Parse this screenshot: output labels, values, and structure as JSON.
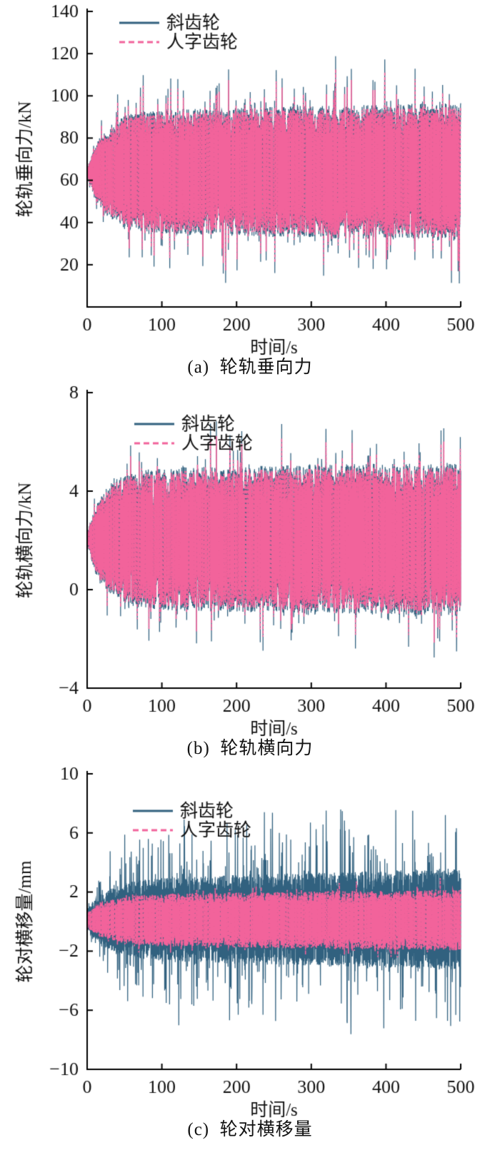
{
  "page": {
    "background": "#ffffff"
  },
  "colors": {
    "helical_blue": "#31617f",
    "herringbone_pink": "#f2639b",
    "axis_black": "#000000",
    "text_black": "#111111"
  },
  "chart_data": [
    {
      "type": "line",
      "caption": "(a)  轮轨垂向力",
      "xlabel": "时间/s",
      "ylabel": "轮轨垂向力/kN",
      "xlim": [
        0,
        500
      ],
      "xticks": [
        0,
        100,
        200,
        300,
        400,
        500
      ],
      "ylim": [
        0,
        140
      ],
      "yticks": [
        20,
        40,
        60,
        80,
        100,
        120,
        140
      ],
      "grid": false,
      "legend_position": "upper-left",
      "description": "Both series start near 64 kN at t=0, fan out to a dense band of roughly 35-97 kN by t≈70 s, with spikes up to ≈123 kN and down to ≈13 kN; pink herringbone nearly overlays blue helical with slightly smaller amplitude.",
      "series": [
        {
          "name": "斜齿轮",
          "color": "#31617f",
          "style": "solid",
          "baseline": 64,
          "amp_start": 1.5,
          "amp_full": 29,
          "rise_tau": 22,
          "growth": 0.13,
          "spike_prob": 0.1,
          "spike_max": 1.82,
          "seed": 11
        },
        {
          "name": "人字齿轮",
          "color": "#f2639b",
          "style": "dashed",
          "baseline": 64,
          "amp_start": 1.4,
          "amp_full": 27.5,
          "rise_tau": 22,
          "growth": 0.13,
          "spike_prob": 0.1,
          "spike_max": 1.7,
          "seed": 11
        }
      ]
    },
    {
      "type": "line",
      "caption": "(b)  轮轨横向力",
      "xlabel": "时间/s",
      "ylabel": "轮轨横向力/kN",
      "xlim": [
        0,
        500
      ],
      "xticks": [
        0,
        100,
        200,
        300,
        400,
        500
      ],
      "ylim": [
        -4,
        8
      ],
      "yticks": [
        -4,
        0,
        4,
        8
      ],
      "grid": false,
      "legend_position": "upper-left",
      "description": "Both series start near 2 kN, fan out to a dense band of roughly -1 to 5 kN, spikes to ≈7 kN and one dip to ≈-3.7 kN near t=285 s; pink nearly overlays blue.",
      "series": [
        {
          "name": "斜齿轮",
          "color": "#31617f",
          "style": "solid",
          "baseline": 2.05,
          "amp_start": 0.25,
          "amp_full": 2.85,
          "rise_tau": 22,
          "growth": 0.1,
          "spike_prob": 0.09,
          "spike_max": 1.65,
          "seed": 22
        },
        {
          "name": "人字齿轮",
          "color": "#f2639b",
          "style": "dashed",
          "baseline": 2.05,
          "amp_start": 0.22,
          "amp_full": 2.7,
          "rise_tau": 22,
          "growth": 0.1,
          "spike_prob": 0.09,
          "spike_max": 1.52,
          "seed": 22
        }
      ]
    },
    {
      "type": "line",
      "caption": "(c)  轮对横移量",
      "xlabel": "时间/s",
      "ylabel": "轮对横移量/mm",
      "xlim": [
        0,
        500
      ],
      "xticks": [
        0,
        100,
        200,
        300,
        400,
        500
      ],
      "ylim": [
        -10,
        10
      ],
      "yticks": [
        -10,
        -6,
        -2,
        2,
        6,
        10
      ],
      "grid": false,
      "legend_position": "upper-left",
      "description": "Centered near 0 mm. Blue helical-gear trace has much larger amplitude: dense band ±3 mm with frequent spikes to ±5-9 mm (max ≈9 near t=410 s, min ≈-9.2 near t=335 s). Pink herringbone trace stays within about ±2 mm with rare spikes to ±3 mm.",
      "series": [
        {
          "name": "斜齿轮",
          "color": "#31617f",
          "style": "solid",
          "baseline": 0.15,
          "amp_start": 0.7,
          "amp_full": 2.7,
          "rise_tau": 28,
          "growth": 0.28,
          "spike_prob": 0.18,
          "spike_max": 2.55,
          "seed": 33
        },
        {
          "name": "人字齿轮",
          "color": "#f2639b",
          "style": "dashed",
          "baseline": 0.1,
          "amp_start": 0.5,
          "amp_full": 1.75,
          "rise_tau": 28,
          "growth": 0.18,
          "spike_prob": 0.06,
          "spike_max": 1.5,
          "seed": 44
        }
      ]
    }
  ]
}
